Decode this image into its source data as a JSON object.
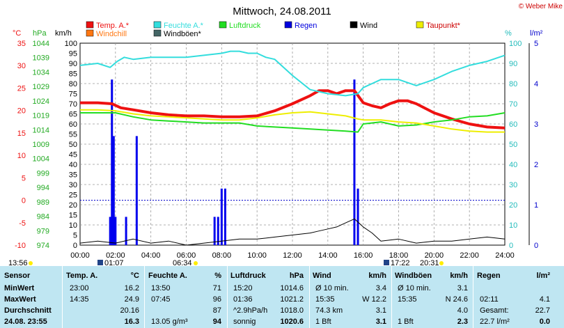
{
  "header": {
    "title": "Mittwoch, 24.08.2011",
    "credit": "© Weber Mike"
  },
  "legend": [
    {
      "label": "Temp. A.*",
      "color": "#ee1111"
    },
    {
      "label": "Feuchte A.*",
      "color": "#33dddd"
    },
    {
      "label": "Luftdruck",
      "color": "#22dd22"
    },
    {
      "label": "Regen",
      "color": "#0000dd"
    },
    {
      "label": "Wind",
      "color": "#000000"
    },
    {
      "label": "Taupunkt*",
      "color": "#eeee00"
    },
    {
      "label": "Windchill",
      "color": "#ff7711"
    },
    {
      "label": "Windböen*",
      "color": "#446666"
    }
  ],
  "axis_units": {
    "temp": "°C",
    "pressure": "hPa",
    "wind": "km/h",
    "humidity": "%",
    "rain": "l/m²"
  },
  "chart_data": {
    "type": "line",
    "x_ticks": [
      "00:00",
      "02:00",
      "04:00",
      "06:00",
      "08:00",
      "10:00",
      "12:00",
      "14:00",
      "16:00",
      "18:00",
      "20:00",
      "22:00",
      "24:00"
    ],
    "temp_ticks": [
      35.0,
      30.0,
      25.0,
      20.0,
      15.0,
      10.0,
      5.0,
      0.0,
      -5.0,
      -10.0
    ],
    "pressure_ticks": [
      1044,
      1039,
      1034,
      1029,
      1024,
      1019,
      1014,
      1009,
      1004,
      999,
      994,
      989,
      984,
      979,
      974
    ],
    "wind_ticks": [
      100.0,
      95.0,
      90.0,
      85.0,
      80.0,
      75.0,
      70.0,
      65.0,
      60.0,
      55.0,
      50.0,
      45.0,
      40.0,
      35.0,
      30.0,
      25.0,
      20.0,
      15.0,
      10.0,
      5.0,
      0.0
    ],
    "humidity_ticks": [
      100,
      90,
      80,
      70,
      60,
      50,
      40,
      30,
      20,
      10,
      0
    ],
    "rain_ticks": [
      5.0,
      4.0,
      3.0,
      2.0,
      1.0,
      0.0
    ],
    "ranges": {
      "temp": [
        -10,
        35
      ],
      "wind": [
        0,
        100
      ],
      "humidity": [
        0,
        100
      ],
      "rain": [
        0,
        5
      ],
      "hours": [
        0,
        24
      ]
    },
    "series": [
      {
        "name": "Temp. A.*",
        "axis": "wind",
        "color": "#ee1111",
        "x": [
          0,
          1,
          1.8,
          2.3,
          3,
          4,
          5,
          6,
          7,
          8,
          9,
          10,
          11,
          12,
          13,
          13.5,
          14,
          14.5,
          15,
          15.5,
          16,
          16.5,
          17,
          17.5,
          18,
          18.5,
          19,
          20,
          21,
          22,
          23,
          24
        ],
        "y": [
          70.5,
          70.5,
          70,
          68,
          67,
          65.5,
          64.5,
          64,
          64,
          63.5,
          63.5,
          64,
          66.5,
          70,
          74,
          76.5,
          76.5,
          75,
          76.5,
          76.5,
          70.5,
          69,
          68,
          70,
          71.5,
          71.5,
          70,
          65.5,
          62.5,
          60,
          58.5,
          58
        ]
      },
      {
        "name": "Feuchte A.*",
        "axis": "humidity",
        "color": "#33dddd",
        "x": [
          0,
          1,
          1.7,
          2.1,
          2.5,
          3,
          4,
          5,
          6,
          7,
          8,
          8.5,
          9,
          9.5,
          10,
          10.5,
          11,
          12,
          13,
          14,
          15,
          15.7,
          16,
          16.5,
          17,
          18,
          19,
          20,
          21,
          22,
          23,
          24
        ],
        "y": [
          89,
          90,
          88,
          91,
          93,
          92,
          93,
          93,
          93,
          94,
          95,
          96,
          96,
          95,
          95,
          93,
          92,
          84,
          77,
          75,
          74,
          75,
          78,
          80,
          82,
          82,
          79,
          82,
          86,
          89,
          91,
          94
        ]
      },
      {
        "name": "Luftdruck",
        "axis": "wind",
        "color": "#22dd22",
        "x": [
          0,
          1,
          2,
          3,
          4,
          5,
          6,
          7,
          8,
          9,
          10,
          11,
          12,
          13,
          14,
          15,
          15.7,
          16,
          17,
          18,
          19,
          20,
          21,
          22,
          23,
          24
        ],
        "y": [
          65.5,
          65.5,
          65.5,
          63.5,
          62,
          61.5,
          61,
          60.5,
          60.5,
          60.5,
          59,
          58.5,
          58,
          57.5,
          57,
          56.5,
          56,
          60,
          61,
          59,
          59.5,
          61,
          62,
          63.5,
          64,
          65.5
        ]
      },
      {
        "name": "Taupunkt*",
        "axis": "wind",
        "color": "#eeee00",
        "x": [
          0,
          1,
          2,
          3,
          4,
          5,
          6,
          7,
          8,
          9,
          10,
          11,
          12,
          13,
          14,
          15,
          15.7,
          16,
          17,
          18,
          19,
          20,
          21,
          22,
          23,
          24
        ],
        "y": [
          67,
          67,
          66.5,
          65,
          64,
          63.5,
          63,
          62.5,
          62,
          62,
          63,
          64.5,
          65.5,
          66,
          65,
          64,
          62.5,
          62,
          62,
          61,
          60.5,
          59,
          57.5,
          56.5,
          56,
          56
        ]
      },
      {
        "name": "Wind",
        "axis": "wind",
        "color": "#000000",
        "x": [
          0,
          1,
          2,
          3,
          4,
          5,
          6,
          7,
          8,
          9,
          10,
          11,
          12,
          13,
          13.5,
          14,
          14.5,
          15,
          15.5,
          16,
          16.5,
          17,
          18,
          19,
          20,
          21,
          22,
          23,
          24
        ],
        "y": [
          1,
          2,
          1,
          3,
          1,
          2,
          0,
          1,
          2,
          3,
          3,
          4,
          5,
          6,
          7,
          8,
          9,
          11,
          13,
          9,
          6,
          2,
          3,
          1,
          2,
          2,
          3,
          4,
          3
        ]
      }
    ],
    "rain_bars": [
      {
        "x": 1.7,
        "mm": 0.7
      },
      {
        "x": 1.8,
        "mm": 4.1
      },
      {
        "x": 1.9,
        "mm": 2.7
      },
      {
        "x": 2.0,
        "mm": 0.7
      },
      {
        "x": 2.6,
        "mm": 0.7
      },
      {
        "x": 3.2,
        "mm": 2.7
      },
      {
        "x": 7.6,
        "mm": 0.7
      },
      {
        "x": 7.8,
        "mm": 0.7
      },
      {
        "x": 8.0,
        "mm": 1.4
      },
      {
        "x": 8.2,
        "mm": 1.4
      },
      {
        "x": 15.5,
        "mm": 4.1
      },
      {
        "x": 15.7,
        "mm": 1.4
      }
    ],
    "markers": {
      "sunrise_icon": "sun-icon",
      "moon_icon": "moon-icon",
      "time1": "13:56",
      "time2": "01:07",
      "time3": "06:34",
      "time4": "17:22",
      "time5": "20:31"
    }
  },
  "table": {
    "headers": {
      "sensor": "Sensor",
      "temp": "Temp. A.",
      "temp_unit": "°C",
      "hum": "Feuchte A.",
      "hum_unit": "%",
      "press": "Luftdruck",
      "press_unit": "hPa",
      "wind": "Wind",
      "wind_unit": "km/h",
      "gust": "Windböen",
      "gust_unit": "km/h",
      "rain": "Regen",
      "rain_unit": "l/m²"
    },
    "rows": [
      {
        "label": "MinWert",
        "t_time": "23:00",
        "t_val": "16.2",
        "h_time": "13:50",
        "h_val": "71",
        "p_time": "15:20",
        "p_val": "1014.6",
        "w_lbl": "Ø 10 min.",
        "w_val": "3.4",
        "g_lbl": "Ø 10 min.",
        "g_val": "3.1",
        "r_lbl": "",
        "r_val": ""
      },
      {
        "label": "MaxWert",
        "t_time": "14:35",
        "t_val": "24.9",
        "h_time": "07:45",
        "h_val": "96",
        "p_time": "01:36",
        "p_val": "1021.2",
        "w_lbl": "15:35",
        "w_val": "W 12.2",
        "g_lbl": "15:35",
        "g_val": "N 24.6",
        "r_lbl": "02:11",
        "r_val": "4.1"
      },
      {
        "label": "Durchschnitt",
        "t_time": "",
        "t_val": "20.16",
        "h_time": "",
        "h_val": "87",
        "p_time": "^2.9hPa/h",
        "p_val": "1018.0",
        "w_lbl": "74.3 km",
        "w_val": "3.1",
        "g_lbl": "",
        "g_val": "4.0",
        "r_lbl": "Gesamt:",
        "r_val": "22.7"
      },
      {
        "label": "24.08. 23:55",
        "t_time": "",
        "t_val": "16.3",
        "h_time": "13.05 g/m³",
        "h_val": "94",
        "p_time": "sonnig",
        "p_val": "1020.6",
        "w_lbl": "1 Bft",
        "w_val": "3.1",
        "g_lbl": "1 Bft",
        "g_val": "2.3",
        "r_lbl": "22.7 l/m²",
        "r_val": "0.0"
      }
    ]
  }
}
